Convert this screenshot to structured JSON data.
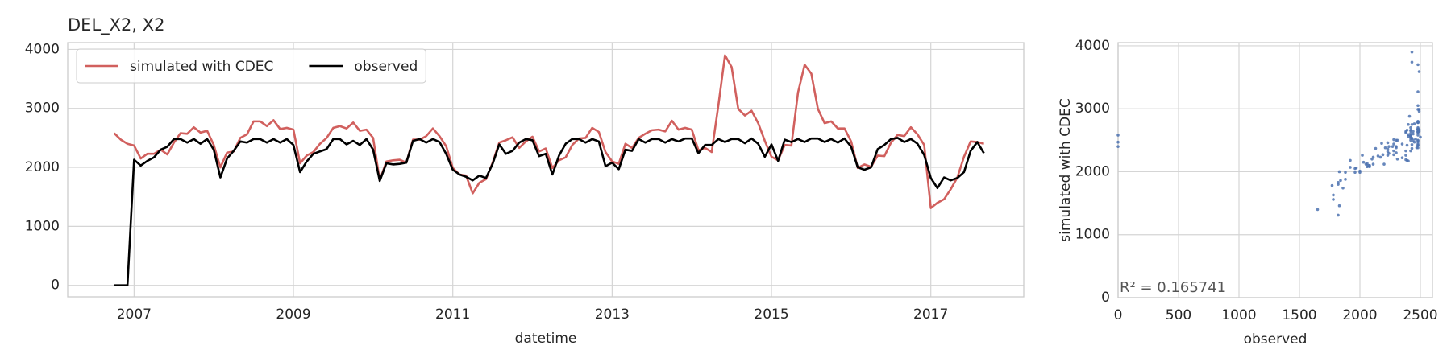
{
  "chart_data": [
    {
      "type": "line",
      "title": "DEL_X2, X2",
      "xlabel": "datetime",
      "x": [
        "2006-10",
        "2006-11",
        "2006-12",
        "2007-01",
        "2007-02",
        "2007-03",
        "2007-04",
        "2007-05",
        "2007-06",
        "2007-07",
        "2007-08",
        "2007-09",
        "2007-10",
        "2007-11",
        "2007-12",
        "2008-01",
        "2008-02",
        "2008-03",
        "2008-04",
        "2008-05",
        "2008-06",
        "2008-07",
        "2008-08",
        "2008-09",
        "2008-10",
        "2008-11",
        "2008-12",
        "2009-01",
        "2009-02",
        "2009-03",
        "2009-04",
        "2009-05",
        "2009-06",
        "2009-07",
        "2009-08",
        "2009-09",
        "2009-10",
        "2009-11",
        "2009-12",
        "2010-01",
        "2010-02",
        "2010-03",
        "2010-04",
        "2010-05",
        "2010-06",
        "2010-07",
        "2010-08",
        "2010-09",
        "2010-10",
        "2010-11",
        "2010-12",
        "2011-01",
        "2011-02",
        "2011-03",
        "2011-04",
        "2011-05",
        "2011-06",
        "2011-07",
        "2011-08",
        "2011-09",
        "2011-10",
        "2011-11",
        "2011-12",
        "2012-01",
        "2012-02",
        "2012-03",
        "2012-04",
        "2012-05",
        "2012-06",
        "2012-07",
        "2012-08",
        "2012-09",
        "2012-10",
        "2012-11",
        "2012-12",
        "2013-01",
        "2013-02",
        "2013-03",
        "2013-04",
        "2013-05",
        "2013-06",
        "2013-07",
        "2013-08",
        "2013-09",
        "2013-10",
        "2013-11",
        "2013-12",
        "2014-01",
        "2014-02",
        "2014-03",
        "2014-04",
        "2014-05",
        "2014-06",
        "2014-07",
        "2014-08",
        "2014-09",
        "2014-10",
        "2014-11",
        "2014-12",
        "2015-01",
        "2015-02",
        "2015-03",
        "2015-04",
        "2015-05",
        "2015-06",
        "2015-07",
        "2015-08",
        "2015-09",
        "2015-10",
        "2015-11",
        "2015-12",
        "2016-01",
        "2016-02",
        "2016-03",
        "2016-04",
        "2016-05",
        "2016-06",
        "2016-07",
        "2016-08",
        "2016-09",
        "2016-10",
        "2016-11",
        "2016-12",
        "2017-01",
        "2017-02",
        "2017-03",
        "2017-04",
        "2017-05",
        "2017-06",
        "2017-07",
        "2017-08",
        "2017-09"
      ],
      "series": [
        {
          "name": "simulated with CDEC",
          "color": "#d1605e",
          "values": [
            2580,
            2470,
            2400,
            2370,
            2150,
            2230,
            2230,
            2300,
            2220,
            2420,
            2580,
            2570,
            2680,
            2590,
            2620,
            2380,
            2000,
            2250,
            2270,
            2500,
            2560,
            2780,
            2780,
            2700,
            2800,
            2650,
            2670,
            2640,
            2070,
            2200,
            2260,
            2400,
            2500,
            2670,
            2700,
            2660,
            2760,
            2620,
            2640,
            2500,
            1780,
            2100,
            2120,
            2130,
            2080,
            2470,
            2470,
            2530,
            2660,
            2530,
            2360,
            1990,
            1880,
            1860,
            1560,
            1740,
            1800,
            2080,
            2420,
            2460,
            2510,
            2330,
            2440,
            2520,
            2270,
            2320,
            1990,
            2120,
            2170,
            2380,
            2490,
            2500,
            2670,
            2600,
            2260,
            2100,
            2060,
            2400,
            2330,
            2500,
            2570,
            2630,
            2640,
            2610,
            2790,
            2640,
            2670,
            2640,
            2290,
            2330,
            2260,
            3050,
            3900,
            3700,
            2990,
            2880,
            2960,
            2750,
            2450,
            2180,
            2120,
            2380,
            2370,
            3270,
            3740,
            3590,
            2990,
            2750,
            2780,
            2660,
            2660,
            2440,
            1990,
            2050,
            2010,
            2200,
            2190,
            2420,
            2550,
            2530,
            2680,
            2560,
            2380,
            1310,
            1400,
            1460,
            1630,
            1830,
            2180,
            2440,
            2430,
            2400
          ]
        },
        {
          "name": "observed",
          "color": "#000000",
          "values": [
            0,
            0,
            0,
            2130,
            2030,
            2110,
            2170,
            2300,
            2350,
            2480,
            2480,
            2420,
            2480,
            2400,
            2480,
            2300,
            1830,
            2150,
            2280,
            2440,
            2420,
            2480,
            2480,
            2420,
            2480,
            2420,
            2480,
            2380,
            1920,
            2100,
            2230,
            2270,
            2310,
            2480,
            2480,
            2390,
            2450,
            2380,
            2480,
            2300,
            1770,
            2070,
            2050,
            2060,
            2080,
            2450,
            2480,
            2420,
            2480,
            2430,
            2230,
            1960,
            1880,
            1840,
            1780,
            1860,
            1820,
            2060,
            2390,
            2230,
            2280,
            2420,
            2480,
            2460,
            2190,
            2230,
            1880,
            2200,
            2400,
            2480,
            2480,
            2420,
            2480,
            2440,
            2020,
            2080,
            1970,
            2300,
            2280,
            2480,
            2420,
            2480,
            2480,
            2420,
            2480,
            2440,
            2490,
            2490,
            2240,
            2380,
            2380,
            2480,
            2430,
            2480,
            2480,
            2410,
            2490,
            2400,
            2180,
            2390,
            2110,
            2470,
            2430,
            2480,
            2430,
            2490,
            2490,
            2430,
            2480,
            2420,
            2490,
            2350,
            2000,
            1960,
            2000,
            2310,
            2380,
            2480,
            2500,
            2430,
            2480,
            2400,
            2210,
            1820,
            1650,
            1830,
            1780,
            1820,
            1920,
            2280,
            2430,
            2240
          ]
        }
      ],
      "xlim": [
        "2006-03",
        "2018-03"
      ],
      "xticks": [
        {
          "value": "2007-01",
          "label": "2007"
        },
        {
          "value": "2009-01",
          "label": "2009"
        },
        {
          "value": "2011-01",
          "label": "2011"
        },
        {
          "value": "2013-01",
          "label": "2013"
        },
        {
          "value": "2015-01",
          "label": "2015"
        },
        {
          "value": "2017-01",
          "label": "2017"
        }
      ],
      "ylim": [
        -195,
        4115
      ],
      "yticks": [
        0,
        1000,
        2000,
        3000,
        4000
      ],
      "grid": true,
      "legend": "upper left"
    },
    {
      "type": "scatter",
      "xlabel": "observed",
      "ylabel": "simulated with CDEC",
      "annotation": "R² = 0.165741",
      "color": "#4c72b0",
      "x": [
        0,
        0,
        0,
        2130,
        2030,
        2110,
        2170,
        2300,
        2350,
        2480,
        2480,
        2420,
        2480,
        2400,
        2480,
        2300,
        1830,
        2150,
        2280,
        2440,
        2420,
        2480,
        2480,
        2420,
        2480,
        2420,
        2480,
        2380,
        1920,
        2100,
        2230,
        2270,
        2310,
        2480,
        2480,
        2390,
        2450,
        2380,
        2480,
        2300,
        1770,
        2070,
        2050,
        2060,
        2080,
        2450,
        2480,
        2420,
        2480,
        2430,
        2230,
        1960,
        1880,
        1840,
        1780,
        1860,
        1820,
        2060,
        2390,
        2230,
        2280,
        2420,
        2480,
        2460,
        2190,
        2230,
        1880,
        2200,
        2400,
        2480,
        2480,
        2420,
        2480,
        2440,
        2020,
        2080,
        1970,
        2300,
        2280,
        2480,
        2420,
        2480,
        2480,
        2420,
        2480,
        2440,
        2490,
        2490,
        2240,
        2380,
        2380,
        2480,
        2430,
        2480,
        2480,
        2410,
        2490,
        2400,
        2180,
        2390,
        2110,
        2470,
        2430,
        2480,
        2430,
        2490,
        2490,
        2430,
        2480,
        2420,
        2490,
        2350,
        2000,
        1960,
        2000,
        2310,
        2380,
        2480,
        2500,
        2430,
        2480,
        2400,
        2210,
        1820,
        1650,
        1830,
        1780,
        1820,
        1920,
        2280,
        2430,
        2240
      ],
      "y": [
        2580,
        2470,
        2400,
        2370,
        2150,
        2230,
        2230,
        2300,
        2220,
        2420,
        2580,
        2570,
        2680,
        2590,
        2620,
        2380,
        2000,
        2250,
        2270,
        2500,
        2560,
        2780,
        2780,
        2700,
        2800,
        2650,
        2670,
        2640,
        2070,
        2200,
        2260,
        2400,
        2500,
        2670,
        2700,
        2660,
        2760,
        2620,
        2640,
        2500,
        1780,
        2100,
        2120,
        2130,
        2080,
        2470,
        2470,
        2530,
        2660,
        2530,
        2360,
        1990,
        1880,
        1860,
        1560,
        1740,
        1800,
        2080,
        2420,
        2460,
        2510,
        2330,
        2440,
        2520,
        2270,
        2320,
        1990,
        2120,
        2170,
        2380,
        2490,
        2500,
        2670,
        2600,
        2260,
        2100,
        2060,
        2400,
        2330,
        2500,
        2570,
        2630,
        2640,
        2610,
        2790,
        2640,
        2670,
        2640,
        2290,
        2330,
        2260,
        3050,
        3900,
        3700,
        2990,
        2880,
        2960,
        2750,
        2450,
        2180,
        2120,
        2380,
        2370,
        3270,
        3740,
        3590,
        2990,
        2750,
        2780,
        2660,
        2660,
        2440,
        1990,
        2050,
        2010,
        2200,
        2190,
        2420,
        2550,
        2530,
        2680,
        2560,
        2380,
        1310,
        1400,
        1460,
        1630,
        1830,
        2180,
        2440,
        2430,
        2400
      ],
      "xlim": [
        0,
        2600
      ],
      "xticks": [
        0,
        500,
        1000,
        1500,
        2000,
        2500
      ],
      "ylim": [
        0,
        4050
      ],
      "yticks": [
        0,
        1000,
        2000,
        3000,
        4000
      ],
      "grid": true
    }
  ]
}
